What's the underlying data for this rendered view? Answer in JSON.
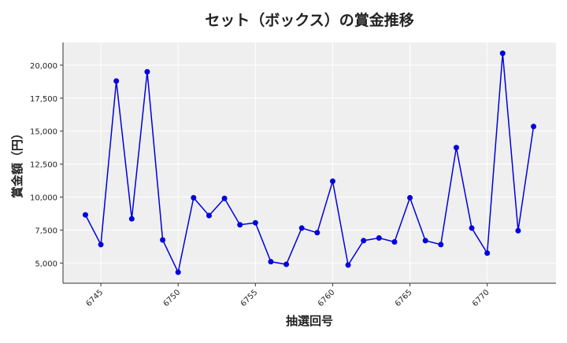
{
  "chart_data": {
    "type": "line",
    "title": "セット（ボックス）の賞金推移",
    "xlabel": "抽選回号",
    "ylabel": "賞金額（円）",
    "x": [
      6744,
      6745,
      6746,
      6747,
      6748,
      6749,
      6750,
      6751,
      6752,
      6753,
      6754,
      6755,
      6756,
      6757,
      6758,
      6759,
      6760,
      6761,
      6762,
      6763,
      6764,
      6765,
      6766,
      6767,
      6768,
      6769,
      6770,
      6771,
      6772,
      6773
    ],
    "series": [
      {
        "values": [
          8650,
          6400,
          18800,
          8350,
          19500,
          6750,
          4300,
          9950,
          8600,
          9900,
          7900,
          8050,
          5100,
          4900,
          7650,
          7300,
          11200,
          4850,
          6700,
          6900,
          6600,
          9950,
          6700,
          6400,
          13750,
          7650,
          5750,
          20900,
          7450,
          15350
        ],
        "color": "#0000dd"
      }
    ],
    "xticks": [
      "6745",
      "6750",
      "6755",
      "6760",
      "6765",
      "6770"
    ],
    "yticks": [
      "5,000",
      "7,500",
      "10,000",
      "12,500",
      "15,000",
      "17,500",
      "20,000"
    ],
    "xlim": [
      6742.55,
      6774.45
    ],
    "ylim": [
      3470,
      21720
    ],
    "grid": true,
    "background": "#efefef",
    "legend": "none"
  }
}
